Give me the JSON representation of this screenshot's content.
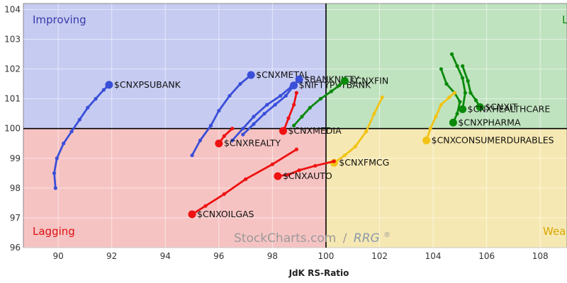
{
  "chart_data": {
    "type": "scatter",
    "title": "",
    "xlabel": "JdK RS-Ratio",
    "ylabel": "",
    "xlim": [
      88.7,
      109
    ],
    "ylim": [
      96,
      104.2
    ],
    "x_ticks": [
      "90",
      "92",
      "94",
      "96",
      "98",
      "100",
      "102",
      "104",
      "106",
      "108"
    ],
    "y_ticks": [
      "96",
      "97",
      "98",
      "99",
      "100",
      "101",
      "102",
      "103",
      "104"
    ],
    "grid": true,
    "center": [
      100,
      100
    ],
    "quadrants": {
      "improving": {
        "label": "Improving",
        "fill": "#c6cbf2",
        "text_color": "#3a3aaa"
      },
      "leading": {
        "label": "L",
        "fill": "#bfe3bf",
        "text_color": "#1a8a1a"
      },
      "lagging": {
        "label": "Lagging",
        "fill": "#f6c3c3",
        "text_color": "#dd1111"
      },
      "weakening": {
        "label": "Wea",
        "fill": "#f6e8b2",
        "text_color": "#d8a800"
      }
    },
    "watermark": {
      "brand": "StockCharts.com",
      "separator": "/",
      "product": "RRG",
      "mark": "®"
    },
    "series": [
      {
        "name": "$CNXPSUBANK",
        "color": "#3a4fd8",
        "points": [
          [
            89.9,
            98.0
          ],
          [
            89.85,
            98.5
          ],
          [
            89.95,
            99.0
          ],
          [
            90.2,
            99.5
          ],
          [
            90.5,
            99.9
          ],
          [
            90.8,
            100.3
          ],
          [
            91.1,
            100.7
          ],
          [
            91.4,
            101.0
          ],
          [
            91.7,
            101.3
          ],
          [
            91.9,
            101.47
          ]
        ]
      },
      {
        "name": "$CNXMETAL",
        "color": "#3a4fd8",
        "points": [
          [
            95.0,
            99.1
          ],
          [
            95.3,
            99.6
          ],
          [
            95.7,
            100.1
          ],
          [
            96.0,
            100.6
          ],
          [
            96.4,
            101.1
          ],
          [
            96.8,
            101.5
          ],
          [
            97.2,
            101.8
          ]
        ]
      },
      {
        "name": "$BANKNIFTY",
        "color": "#3a4fd8",
        "points": [
          [
            96.5,
            99.6
          ],
          [
            96.9,
            100.0
          ],
          [
            97.3,
            100.4
          ],
          [
            97.8,
            100.8
          ],
          [
            98.3,
            101.1
          ],
          [
            98.7,
            101.4
          ],
          [
            99.0,
            101.65
          ]
        ]
      },
      {
        "name": "$NIFTYPVTBANK",
        "color": "#3a4fd8",
        "points": [
          [
            96.9,
            99.8
          ],
          [
            97.3,
            100.15
          ],
          [
            97.7,
            100.5
          ],
          [
            98.1,
            100.8
          ],
          [
            98.5,
            101.1
          ],
          [
            98.8,
            101.45
          ]
        ]
      },
      {
        "name": "$CNXFIN",
        "color": "#0a8a0a",
        "points": [
          [
            98.8,
            100.1
          ],
          [
            99.1,
            100.4
          ],
          [
            99.4,
            100.7
          ],
          [
            99.8,
            101.0
          ],
          [
            100.2,
            101.25
          ],
          [
            100.5,
            101.45
          ],
          [
            100.7,
            101.6
          ]
        ]
      },
      {
        "name": "$CNXIT",
        "color": "#0a8a0a",
        "points": [
          [
            105.1,
            102.1
          ],
          [
            105.3,
            101.6
          ],
          [
            105.4,
            101.2
          ],
          [
            105.6,
            100.95
          ],
          [
            105.75,
            100.72
          ]
        ]
      },
      {
        "name": "$CNXHEALTHCARE",
        "color": "#0a8a0a",
        "points": [
          [
            104.7,
            102.5
          ],
          [
            104.9,
            102.1
          ],
          [
            105.1,
            101.7
          ],
          [
            105.2,
            101.2
          ],
          [
            105.1,
            100.65
          ]
        ]
      },
      {
        "name": "$CNXPHARMA",
        "color": "#0a8a0a",
        "points": [
          [
            104.3,
            102.0
          ],
          [
            104.5,
            101.5
          ],
          [
            104.8,
            101.2
          ],
          [
            105.0,
            100.9
          ],
          [
            104.9,
            100.5
          ],
          [
            104.75,
            100.2
          ]
        ]
      },
      {
        "name": "$CNXCONSUMERDURABLES",
        "color": "#f2c314",
        "points": [
          [
            104.8,
            101.2
          ],
          [
            104.6,
            101.05
          ],
          [
            104.3,
            100.8
          ],
          [
            104.1,
            100.4
          ],
          [
            103.9,
            100.0
          ],
          [
            103.75,
            99.6
          ]
        ]
      },
      {
        "name": "$CNXFMCG",
        "color": "#f2c314",
        "points": [
          [
            102.1,
            101.05
          ],
          [
            101.8,
            100.5
          ],
          [
            101.5,
            99.9
          ],
          [
            101.1,
            99.4
          ],
          [
            100.7,
            99.1
          ],
          [
            100.3,
            98.85
          ]
        ]
      },
      {
        "name": "$CNXMEDIA",
        "color": "#ee1111",
        "points": [
          [
            98.9,
            101.2
          ],
          [
            98.8,
            100.8
          ],
          [
            98.6,
            100.35
          ],
          [
            98.45,
            100.0
          ],
          [
            98.4,
            99.92
          ]
        ]
      },
      {
        "name": "$CNXREALTY",
        "color": "#ee1111",
        "points": [
          [
            96.5,
            100.0
          ],
          [
            96.2,
            99.75
          ],
          [
            96.0,
            99.5
          ]
        ]
      },
      {
        "name": "$CNXAUTO",
        "color": "#ee1111",
        "points": [
          [
            100.3,
            98.9
          ],
          [
            99.6,
            98.75
          ],
          [
            99.0,
            98.6
          ],
          [
            98.6,
            98.45
          ],
          [
            98.2,
            98.4
          ]
        ]
      },
      {
        "name": "$CNXOILGAS",
        "color": "#ee1111",
        "points": [
          [
            98.9,
            99.3
          ],
          [
            98.0,
            98.8
          ],
          [
            97.0,
            98.3
          ],
          [
            96.2,
            97.8
          ],
          [
            95.5,
            97.4
          ],
          [
            95.0,
            97.12
          ]
        ]
      }
    ]
  }
}
